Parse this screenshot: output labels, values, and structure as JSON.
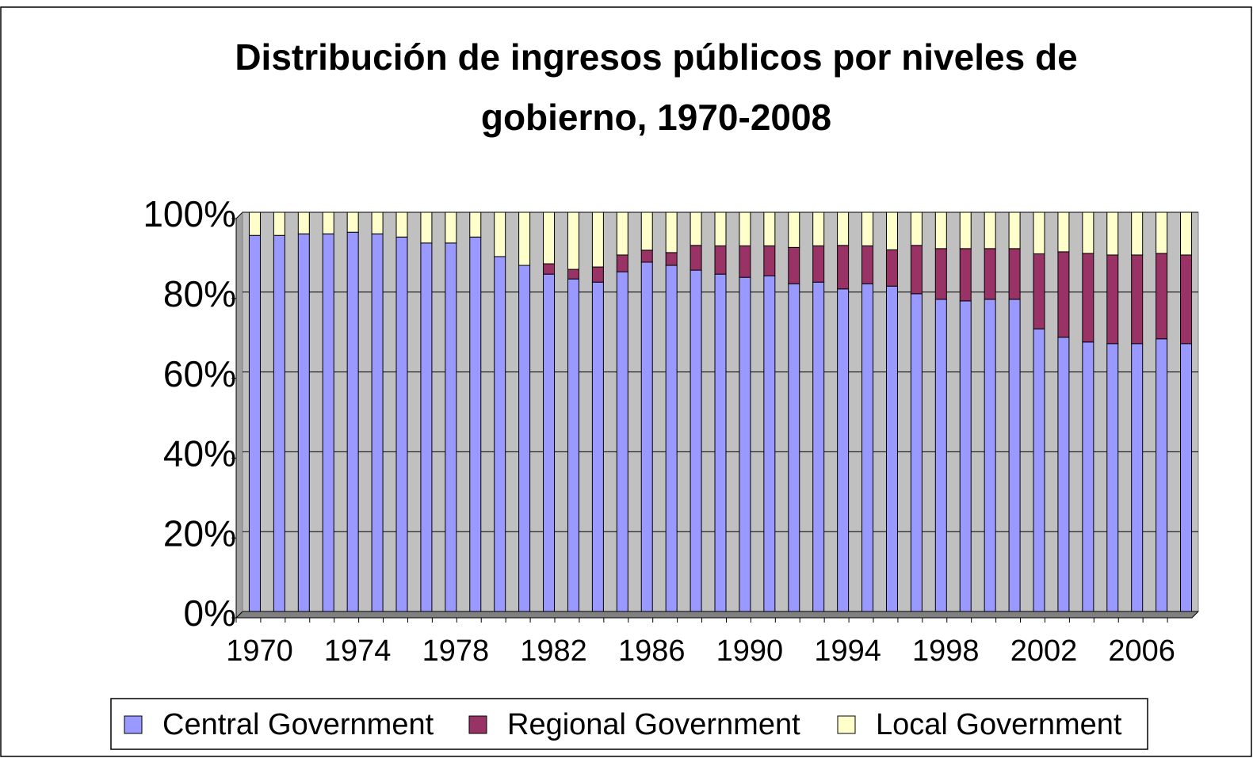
{
  "chart_data": {
    "type": "stacked_bar",
    "title": "Distribución de ingresos públicos por niveles de gobierno, 1970-2008",
    "categories": [
      "1970",
      null,
      null,
      null,
      "1974",
      null,
      null,
      null,
      "1978",
      null,
      null,
      null,
      "1982",
      null,
      null,
      null,
      "1986",
      null,
      null,
      null,
      "1990",
      null,
      null,
      null,
      "1994",
      null,
      null,
      null,
      "1998",
      null,
      null,
      null,
      "2002",
      null,
      null,
      null,
      "2006",
      null,
      null
    ],
    "series": [
      {
        "name": "Central Government",
        "color": "#9999ff",
        "values": [
          94.2,
          94.2,
          94.6,
          94.6,
          95.0,
          94.6,
          93.8,
          92.3,
          92.3,
          93.8,
          88.9,
          86.7,
          84.5,
          83.3,
          82.5,
          85.1,
          87.5,
          86.7,
          85.5,
          84.5,
          83.7,
          84.1,
          82.1,
          82.5,
          80.8,
          82.1,
          81.5,
          79.6,
          78.2,
          77.8,
          78.2,
          78.2,
          70.8,
          68.7,
          67.5,
          67.1,
          67.1,
          68.3,
          67.1
        ]
      },
      {
        "name": "Regional Government",
        "color": "#993366",
        "values": [
          0,
          0,
          0,
          0,
          0,
          0,
          0,
          0,
          0,
          0,
          0,
          0,
          2.6,
          2.4,
          3.8,
          4.2,
          3.0,
          3.2,
          6.2,
          7.1,
          7.9,
          7.5,
          9.1,
          9.1,
          10.9,
          9.5,
          9.1,
          12.1,
          12.7,
          13.1,
          12.7,
          12.7,
          18.8,
          21.4,
          22.2,
          22.2,
          22.2,
          21.4,
          22.2
        ]
      },
      {
        "name": "Local Government",
        "color": "#ffffcc",
        "values": [
          5.8,
          5.8,
          5.4,
          5.4,
          5.0,
          5.4,
          6.2,
          7.7,
          7.7,
          6.2,
          11.1,
          13.3,
          12.9,
          14.3,
          13.7,
          10.7,
          9.5,
          10.1,
          8.3,
          8.4,
          8.4,
          8.4,
          8.8,
          8.4,
          8.3,
          8.4,
          9.4,
          8.3,
          9.1,
          9.1,
          9.1,
          9.1,
          10.4,
          9.9,
          10.3,
          10.7,
          10.7,
          10.3,
          10.7
        ]
      }
    ],
    "ylim": [
      0,
      100
    ],
    "yticks": [
      {
        "value": 0,
        "label": "0%"
      },
      {
        "value": 20,
        "label": "20%"
      },
      {
        "value": 40,
        "label": "40%"
      },
      {
        "value": 60,
        "label": "60%"
      },
      {
        "value": 80,
        "label": "80%"
      },
      {
        "value": 100,
        "label": "100%"
      }
    ],
    "grid": true,
    "legend": "bottom",
    "plot_background": "#c0c0c0"
  }
}
